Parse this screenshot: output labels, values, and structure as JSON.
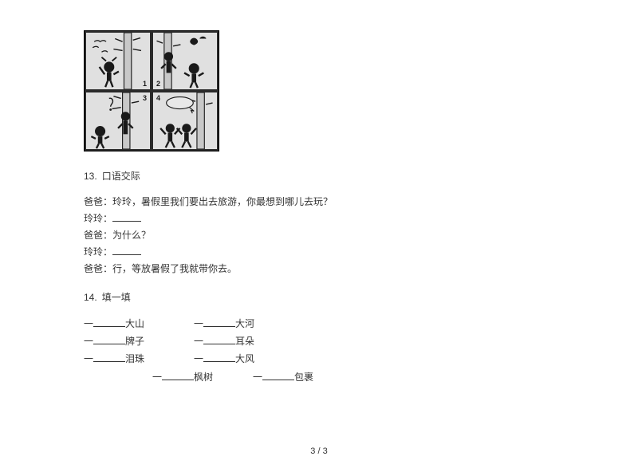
{
  "comic": {
    "panel_numbers": [
      "1",
      "2",
      "3",
      "4"
    ],
    "bg_color": "#e8e8e8",
    "border_color": "#2a2a2a"
  },
  "q13": {
    "number": "13.",
    "title": "口语交际",
    "lines": [
      {
        "speaker": "爸爸：",
        "text": "玲玲，暑假里我们要出去旅游，你最想到哪儿去玩？",
        "blank_width": 0
      },
      {
        "speaker": "玲玲：",
        "text": "",
        "blank_width": 36
      },
      {
        "speaker": "爸爸：",
        "text": "为什么？",
        "blank_width": 0
      },
      {
        "speaker": "玲玲：",
        "text": "",
        "blank_width": 36
      },
      {
        "speaker": "爸爸：",
        "text": "行，等放暑假了我就带你去。",
        "blank_width": 0
      }
    ]
  },
  "q14": {
    "number": "14.",
    "title": "填一填",
    "rows": [
      {
        "indent": 0,
        "gap": 62,
        "items": [
          {
            "pre": "一",
            "bw": 40,
            "post": "大山"
          },
          {
            "pre": "一",
            "bw": 40,
            "post": "大河"
          }
        ]
      },
      {
        "indent": 0,
        "gap": 62,
        "items": [
          {
            "pre": "一",
            "bw": 40,
            "post": "牌子"
          },
          {
            "pre": "一",
            "bw": 40,
            "post": "耳朵"
          }
        ]
      },
      {
        "indent": 0,
        "gap": 62,
        "items": [
          {
            "pre": "一",
            "bw": 40,
            "post": "泪珠"
          },
          {
            "pre": "一",
            "bw": 40,
            "post": "大风"
          }
        ]
      },
      {
        "indent": 86,
        "gap": 50,
        "items": [
          {
            "pre": "一",
            "bw": 40,
            "post": "枫树"
          },
          {
            "pre": "一",
            "bw": 40,
            "post": "包裹"
          }
        ]
      }
    ]
  },
  "footer": "3 / 3"
}
